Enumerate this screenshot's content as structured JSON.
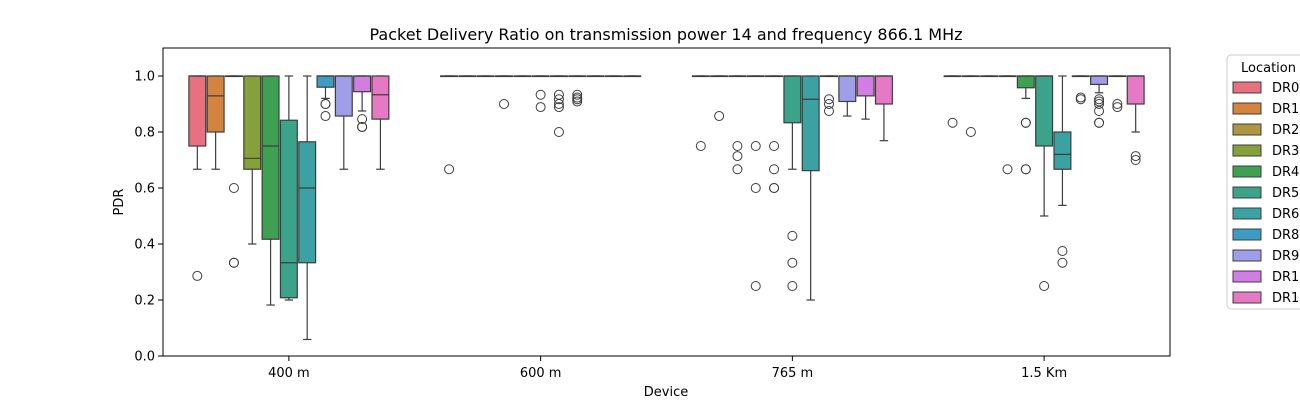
{
  "chart_data": {
    "type": "boxplot",
    "title": "Packet Delivery Ratio on transmission power 14 and frequency 866.1 MHz",
    "xlabel": "Device",
    "ylabel": "PDR",
    "ylim": [
      0,
      1.1
    ],
    "yticks": [
      "0.0",
      "0.2",
      "0.4",
      "0.6",
      "0.8",
      "1.0"
    ],
    "categories": [
      "400 m",
      "600 m",
      "765 m",
      "1.5 Km"
    ],
    "legend": {
      "title": "Location",
      "placement": "outside right"
    },
    "series": [
      {
        "name": "DR0",
        "color": "#e8707f",
        "boxes": [
          {
            "q1": 0.75,
            "med": 1.0,
            "q3": 1.0,
            "wlo": 0.667,
            "whi": 1.0,
            "fliers": [
              0.286
            ]
          },
          {
            "q1": 1.0,
            "med": 1.0,
            "q3": 1.0,
            "wlo": 1.0,
            "whi": 1.0,
            "fliers": [
              0.667
            ]
          },
          {
            "q1": 1.0,
            "med": 1.0,
            "q3": 1.0,
            "wlo": 1.0,
            "whi": 1.0,
            "fliers": [
              0.75
            ]
          },
          {
            "q1": 1.0,
            "med": 1.0,
            "q3": 1.0,
            "wlo": 1.0,
            "whi": 1.0,
            "fliers": [
              0.833
            ]
          }
        ]
      },
      {
        "name": "DR1",
        "color": "#d3843f",
        "boxes": [
          {
            "q1": 0.8,
            "med": 0.929,
            "q3": 1.0,
            "wlo": 0.667,
            "whi": 1.0,
            "fliers": []
          },
          {
            "q1": 1.0,
            "med": 1.0,
            "q3": 1.0,
            "wlo": 1.0,
            "whi": 1.0,
            "fliers": []
          },
          {
            "q1": 1.0,
            "med": 1.0,
            "q3": 1.0,
            "wlo": 1.0,
            "whi": 1.0,
            "fliers": [
              0.857
            ]
          },
          {
            "q1": 1.0,
            "med": 1.0,
            "q3": 1.0,
            "wlo": 1.0,
            "whi": 1.0,
            "fliers": [
              0.8
            ]
          }
        ]
      },
      {
        "name": "DR2",
        "color": "#ad9742",
        "boxes": [
          {
            "q1": 1.0,
            "med": 1.0,
            "q3": 1.0,
            "wlo": 1.0,
            "whi": 1.0,
            "fliers": [
              0.6,
              0.333,
              0.333
            ]
          },
          {
            "q1": 1.0,
            "med": 1.0,
            "q3": 1.0,
            "wlo": 1.0,
            "whi": 1.0,
            "fliers": []
          },
          {
            "q1": 1.0,
            "med": 1.0,
            "q3": 1.0,
            "wlo": 1.0,
            "whi": 1.0,
            "fliers": [
              0.75,
              0.714,
              0.667
            ]
          },
          {
            "q1": 1.0,
            "med": 1.0,
            "q3": 1.0,
            "wlo": 1.0,
            "whi": 1.0,
            "fliers": []
          }
        ]
      },
      {
        "name": "DR3",
        "color": "#86a03b",
        "boxes": [
          {
            "q1": 0.667,
            "med": 0.706,
            "q3": 1.0,
            "wlo": 0.4,
            "whi": 1.0,
            "fliers": []
          },
          {
            "q1": 1.0,
            "med": 1.0,
            "q3": 1.0,
            "wlo": 1.0,
            "whi": 1.0,
            "fliers": [
              0.9
            ]
          },
          {
            "q1": 1.0,
            "med": 1.0,
            "q3": 1.0,
            "wlo": 1.0,
            "whi": 1.0,
            "fliers": [
              0.75,
              0.6,
              0.25
            ]
          },
          {
            "q1": 1.0,
            "med": 1.0,
            "q3": 1.0,
            "wlo": 1.0,
            "whi": 1.0,
            "fliers": [
              0.667
            ]
          }
        ]
      },
      {
        "name": "DR4",
        "color": "#3ea151",
        "boxes": [
          {
            "q1": 0.417,
            "med": 0.75,
            "q3": 1.0,
            "wlo": 0.182,
            "whi": 1.0,
            "fliers": []
          },
          {
            "q1": 1.0,
            "med": 1.0,
            "q3": 1.0,
            "wlo": 1.0,
            "whi": 1.0,
            "fliers": []
          },
          {
            "q1": 1.0,
            "med": 1.0,
            "q3": 1.0,
            "wlo": 1.0,
            "whi": 1.0,
            "fliers": [
              0.75,
              0.667,
              0.6,
              0.6
            ]
          },
          {
            "q1": 0.958,
            "med": 1.0,
            "q3": 1.0,
            "wlo": 0.92,
            "whi": 1.0,
            "fliers": [
              0.833,
              0.833,
              0.667,
              0.667
            ]
          }
        ]
      },
      {
        "name": "DR5",
        "color": "#3aa38a",
        "boxes": [
          {
            "q1": 0.208,
            "med": 0.333,
            "q3": 0.842,
            "wlo": 0.2,
            "whi": 1.0,
            "fliers": []
          },
          {
            "q1": 1.0,
            "med": 1.0,
            "q3": 1.0,
            "wlo": 1.0,
            "whi": 1.0,
            "fliers": [
              0.933,
              0.889
            ]
          },
          {
            "q1": 0.833,
            "med": 1.0,
            "q3": 1.0,
            "wlo": 0.667,
            "whi": 1.0,
            "fliers": [
              0.429,
              0.333,
              0.25
            ]
          },
          {
            "q1": 0.75,
            "med": 1.0,
            "q3": 1.0,
            "wlo": 0.5,
            "whi": 1.0,
            "fliers": [
              0.25
            ]
          }
        ]
      },
      {
        "name": "DR6",
        "color": "#3ca1a2",
        "boxes": [
          {
            "q1": 0.333,
            "med": 0.6,
            "q3": 0.765,
            "wlo": 0.059,
            "whi": 1.0,
            "fliers": []
          },
          {
            "q1": 1.0,
            "med": 1.0,
            "q3": 1.0,
            "wlo": 1.0,
            "whi": 1.0,
            "fliers": [
              0.933,
              0.917,
              0.9,
              0.889,
              0.8
            ]
          },
          {
            "q1": 0.662,
            "med": 0.917,
            "q3": 1.0,
            "wlo": 0.2,
            "whi": 1.0,
            "fliers": []
          },
          {
            "q1": 0.667,
            "med": 0.72,
            "q3": 0.8,
            "wlo": 0.538,
            "whi": 1.0,
            "fliers": [
              0.375,
              0.333
            ]
          }
        ]
      },
      {
        "name": "DR8",
        "color": "#3c9dc4",
        "boxes": [
          {
            "q1": 0.96,
            "med": 1.0,
            "q3": 1.0,
            "wlo": 0.92,
            "whi": 1.0,
            "fliers": [
              0.9,
              0.9,
              0.857
            ]
          },
          {
            "q1": 1.0,
            "med": 1.0,
            "q3": 1.0,
            "wlo": 1.0,
            "whi": 1.0,
            "fliers": [
              0.933,
              0.923,
              0.917,
              0.909
            ]
          },
          {
            "q1": 1.0,
            "med": 1.0,
            "q3": 1.0,
            "wlo": 1.0,
            "whi": 1.0,
            "fliers": [
              0.917,
              0.9,
              0.875
            ]
          },
          {
            "q1": 1.0,
            "med": 1.0,
            "q3": 1.0,
            "wlo": 1.0,
            "whi": 1.0,
            "fliers": [
              0.923,
              0.917
            ]
          }
        ]
      },
      {
        "name": "DR9",
        "color": "#a09ee9",
        "boxes": [
          {
            "q1": 0.857,
            "med": 1.0,
            "q3": 1.0,
            "wlo": 0.667,
            "whi": 1.0,
            "fliers": []
          },
          {
            "q1": 1.0,
            "med": 1.0,
            "q3": 1.0,
            "wlo": 1.0,
            "whi": 1.0,
            "fliers": []
          },
          {
            "q1": 0.909,
            "med": 1.0,
            "q3": 1.0,
            "wlo": 0.857,
            "whi": 1.0,
            "fliers": []
          },
          {
            "q1": 0.97,
            "med": 1.0,
            "q3": 1.0,
            "wlo": 0.94,
            "whi": 1.0,
            "fliers": [
              0.917,
              0.909,
              0.9,
              0.875,
              0.833,
              0.833
            ]
          }
        ]
      },
      {
        "name": "DR1",
        "color": "#d17de3",
        "boxes": [
          {
            "q1": 0.944,
            "med": 1.0,
            "q3": 1.0,
            "wlo": 0.875,
            "whi": 1.0,
            "fliers": [
              0.846,
              0.818,
              0.818
            ]
          },
          {
            "q1": 1.0,
            "med": 1.0,
            "q3": 1.0,
            "wlo": 1.0,
            "whi": 1.0,
            "fliers": []
          },
          {
            "q1": 0.929,
            "med": 1.0,
            "q3": 1.0,
            "wlo": 0.846,
            "whi": 1.0,
            "fliers": []
          },
          {
            "q1": 1.0,
            "med": 1.0,
            "q3": 1.0,
            "wlo": 1.0,
            "whi": 1.0,
            "fliers": [
              0.9,
              0.889
            ]
          }
        ]
      },
      {
        "name": "DR1",
        "color": "#e679c3",
        "boxes": [
          {
            "q1": 0.846,
            "med": 0.933,
            "q3": 1.0,
            "wlo": 0.667,
            "whi": 1.0,
            "fliers": []
          },
          {
            "q1": 1.0,
            "med": 1.0,
            "q3": 1.0,
            "wlo": 1.0,
            "whi": 1.0,
            "fliers": []
          },
          {
            "q1": 0.9,
            "med": 1.0,
            "q3": 1.0,
            "wlo": 0.769,
            "whi": 1.0,
            "fliers": []
          },
          {
            "q1": 0.9,
            "med": 1.0,
            "q3": 1.0,
            "wlo": 0.8,
            "whi": 1.0,
            "fliers": [
              0.714,
              0.7
            ]
          }
        ]
      }
    ]
  }
}
